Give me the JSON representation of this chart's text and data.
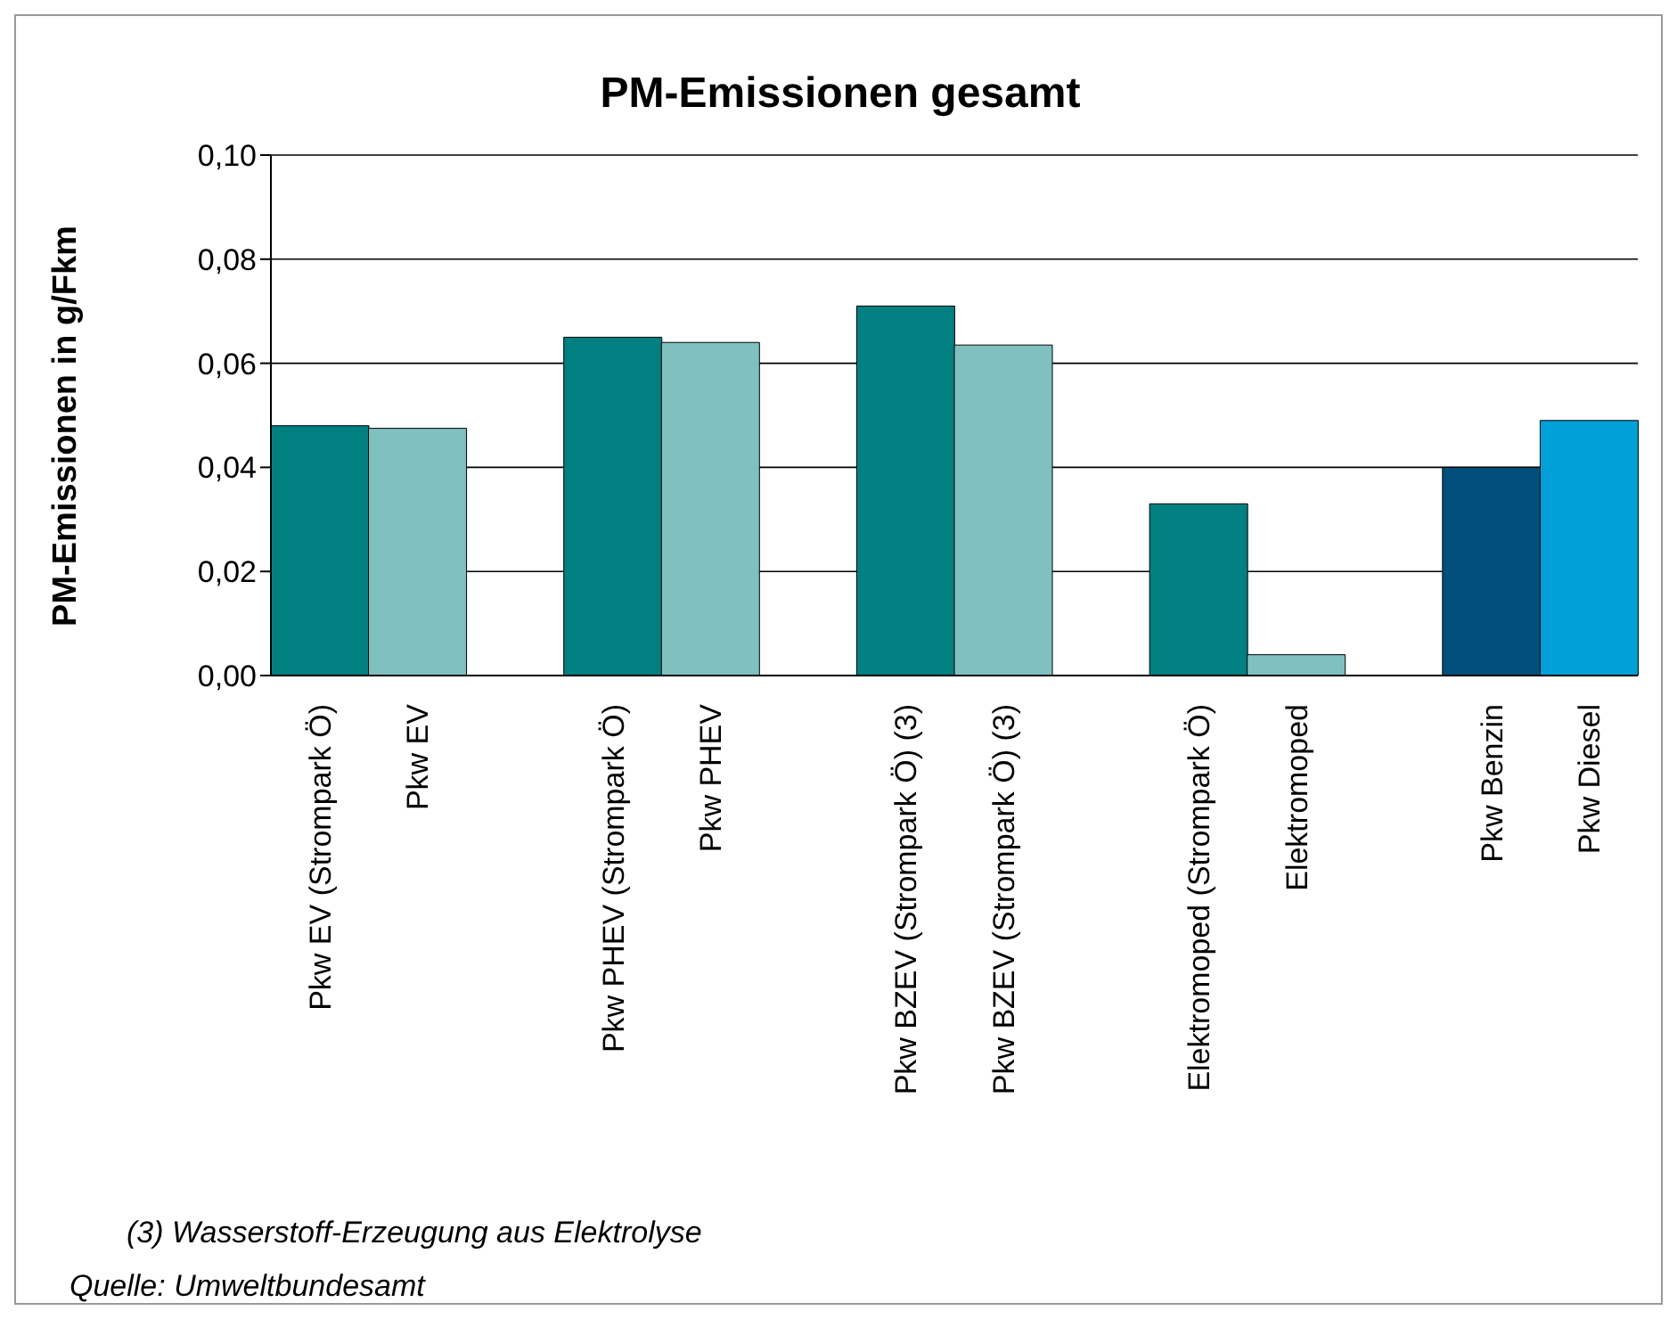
{
  "chart_data": {
    "type": "bar",
    "title": "PM-Emissionen gesamt",
    "ylabel": "PM-Emissionen in g/Fkm",
    "categories": [
      "Pkw EV (Strompark Ö)",
      "Pkw EV",
      null,
      "Pkw PHEV (Strompark Ö)",
      "Pkw PHEV",
      null,
      "Pkw BZEV (Strompark Ö) (3)",
      "Pkw BZEV (Strompark Ö) (3)",
      null,
      "Elektromoped (Strompark Ö)",
      "Elektromoped",
      null,
      "Pkw Benzin",
      "Pkw Diesel"
    ],
    "values": [
      0.048,
      0.0475,
      null,
      0.065,
      0.064,
      null,
      0.071,
      0.0635,
      null,
      0.033,
      0.004,
      null,
      0.04,
      0.049
    ],
    "colors": [
      "#008080",
      "#80c0c0",
      null,
      "#008080",
      "#80c0c0",
      null,
      "#008080",
      "#80c0c0",
      null,
      "#008080",
      "#80c0c0",
      null,
      "#004f7a",
      "#00a0d8"
    ],
    "ylim": [
      0,
      0.1
    ],
    "yticks": [
      {
        "value": 0,
        "label": "0,00"
      },
      {
        "value": 0.02,
        "label": "0,02"
      },
      {
        "value": 0.04,
        "label": "0,04"
      },
      {
        "value": 0.06,
        "label": "0,06"
      },
      {
        "value": 0.08,
        "label": "0,08"
      },
      {
        "value": 0.1,
        "label": "0,10"
      }
    ],
    "grid": "y",
    "legend": false,
    "annotations": [
      "(3) Wasserstoff-Erzeugung aus Elektrolyse",
      "Quelle: Umweltbundesamt"
    ]
  }
}
